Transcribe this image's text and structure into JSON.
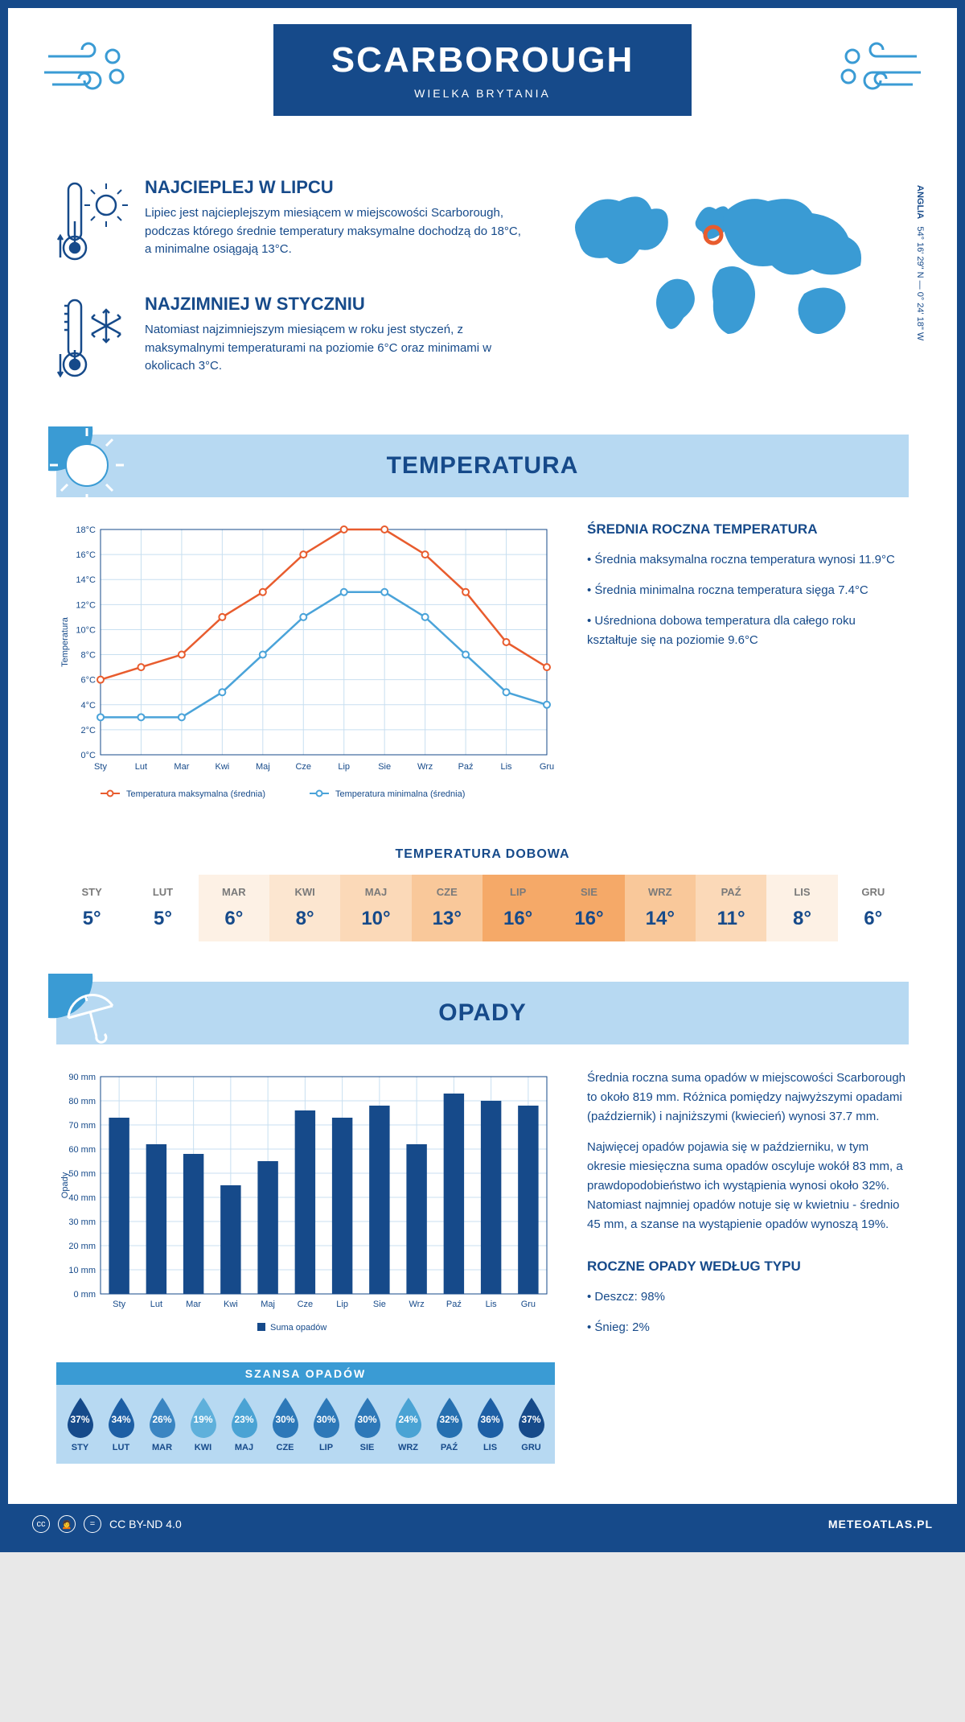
{
  "header": {
    "city": "SCARBOROUGH",
    "country": "WIELKA BRYTANIA"
  },
  "coords": {
    "region": "ANGLIA",
    "lat": "54° 16' 29\" N",
    "lon": "0° 24' 18\" W"
  },
  "warm": {
    "title": "NAJCIEPLEJ W LIPCU",
    "text": "Lipiec jest najcieplejszym miesiącem w miejscowości Scarborough, podczas którego średnie temperatury maksymalne dochodzą do 18°C, a minimalne osiągają 13°C."
  },
  "cold": {
    "title": "NAJZIMNIEJ W STYCZNIU",
    "text": "Natomiast najzimniejszym miesiącem w roku jest styczeń, z maksymalnymi temperaturami na poziomie 6°C oraz minimami w okolicach 3°C."
  },
  "tempSection": {
    "title": "TEMPERATURA",
    "annualTitle": "ŚREDNIA ROCZNA TEMPERATURA",
    "bullet1": "• Średnia maksymalna roczna temperatura wynosi 11.9°C",
    "bullet2": "• Średnia minimalna roczna temperatura sięga 7.4°C",
    "bullet3": "• Uśredniona dobowa temperatura dla całego roku kształtuje się na poziomie 9.6°C",
    "chart": {
      "months": [
        "Sty",
        "Lut",
        "Mar",
        "Kwi",
        "Maj",
        "Cze",
        "Lip",
        "Sie",
        "Wrz",
        "Paź",
        "Lis",
        "Gru"
      ],
      "max": [
        6,
        7,
        8,
        11,
        13,
        16,
        18,
        18,
        16,
        13,
        9,
        7
      ],
      "min": [
        3,
        3,
        3,
        5,
        8,
        11,
        13,
        13,
        11,
        8,
        5,
        4
      ],
      "maxColor": "#e85c2e",
      "minColor": "#4aa3d9",
      "gridColor": "#c8dff0",
      "axisColor": "#164a8a",
      "yMin": 0,
      "yMax": 18,
      "yStep": 2,
      "yLabel": "Temperatura",
      "yUnit": "°C",
      "legendMax": "Temperatura maksymalna (średnia)",
      "legendMin": "Temperatura minimalna (średnia)"
    },
    "dailyTitle": "TEMPERATURA DOBOWA",
    "daily": {
      "months": [
        "STY",
        "LUT",
        "MAR",
        "KWI",
        "MAJ",
        "CZE",
        "LIP",
        "SIE",
        "WRZ",
        "PAŹ",
        "LIS",
        "GRU"
      ],
      "values": [
        "5°",
        "5°",
        "6°",
        "8°",
        "10°",
        "13°",
        "16°",
        "16°",
        "14°",
        "11°",
        "8°",
        "6°"
      ],
      "colors": [
        "#ffffff",
        "#ffffff",
        "#fdf1e5",
        "#fce6d0",
        "#fbd9b8",
        "#f9c89a",
        "#f5a968",
        "#f5a968",
        "#f9c89a",
        "#fbd9b8",
        "#fdf1e5",
        "#ffffff"
      ]
    }
  },
  "rainSection": {
    "title": "OPADY",
    "para1": "Średnia roczna suma opadów w miejscowości Scarborough to około 819 mm. Różnica pomiędzy najwyższymi opadami (październik) i najniższymi (kwiecień) wynosi 37.7 mm.",
    "para2": "Najwięcej opadów pojawia się w październiku, w tym okresie miesięczna suma opadów oscyluje wokół 83 mm, a prawdopodobieństwo ich wystąpienia wynosi około 32%. Natomiast najmniej opadów notuje się w kwietniu - średnio 45 mm, a szanse na wystąpienie opadów wynoszą 19%.",
    "chart": {
      "months": [
        "Sty",
        "Lut",
        "Mar",
        "Kwi",
        "Maj",
        "Cze",
        "Lip",
        "Sie",
        "Wrz",
        "Paź",
        "Lis",
        "Gru"
      ],
      "values": [
        73,
        62,
        58,
        45,
        55,
        76,
        73,
        78,
        62,
        83,
        80,
        78
      ],
      "barColor": "#164a8a",
      "gridColor": "#c8dff0",
      "axisColor": "#164a8a",
      "yMin": 0,
      "yMax": 90,
      "yStep": 10,
      "yLabel": "Opady",
      "yUnit": " mm",
      "legend": "Suma opadów"
    },
    "chanceTitle": "SZANSA OPADÓW",
    "chance": {
      "months": [
        "STY",
        "LUT",
        "MAR",
        "KWI",
        "MAJ",
        "CZE",
        "LIP",
        "SIE",
        "WRZ",
        "PAŹ",
        "LIS",
        "GRU"
      ],
      "pct": [
        37,
        34,
        26,
        19,
        23,
        30,
        30,
        30,
        24,
        32,
        36,
        37
      ],
      "colors": [
        "#164a8a",
        "#1d5fa5",
        "#3a85c2",
        "#5fb0db",
        "#4aa3d4",
        "#2d78b8",
        "#2d78b8",
        "#2d78b8",
        "#4aa3d4",
        "#2670b0",
        "#1d5fa5",
        "#164a8a"
      ]
    },
    "typeTitle": "ROCZNE OPADY WEDŁUG TYPU",
    "typeRain": "• Deszcz: 98%",
    "typeSnow": "• Śnieg: 2%"
  },
  "footer": {
    "license": "CC BY-ND 4.0",
    "site": "METEOATLAS.PL"
  }
}
